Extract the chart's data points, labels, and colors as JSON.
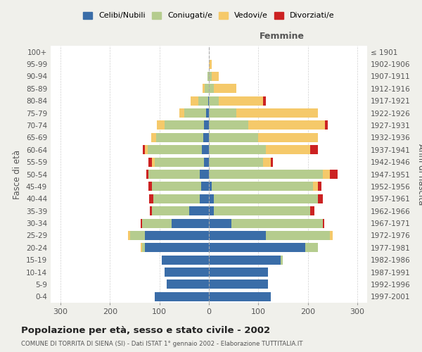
{
  "age_groups": [
    "0-4",
    "5-9",
    "10-14",
    "15-19",
    "20-24",
    "25-29",
    "30-34",
    "35-39",
    "40-44",
    "45-49",
    "50-54",
    "55-59",
    "60-64",
    "65-69",
    "70-74",
    "75-79",
    "80-84",
    "85-89",
    "90-94",
    "95-99",
    "100+"
  ],
  "birth_years": [
    "1997-2001",
    "1992-1996",
    "1987-1991",
    "1982-1986",
    "1977-1981",
    "1972-1976",
    "1967-1971",
    "1962-1966",
    "1957-1961",
    "1952-1956",
    "1947-1951",
    "1942-1946",
    "1937-1941",
    "1932-1936",
    "1927-1931",
    "1922-1926",
    "1917-1921",
    "1912-1916",
    "1907-1911",
    "1902-1906",
    "≤ 1901"
  ],
  "colors": {
    "celibi": "#3a6da8",
    "coniugati": "#b5cc8e",
    "vedovi": "#f5c96a",
    "divorziati": "#cc2222"
  },
  "maschi": {
    "celibi": [
      110,
      85,
      90,
      95,
      130,
      130,
      75,
      40,
      18,
      15,
      18,
      10,
      14,
      12,
      10,
      5,
      2,
      0,
      0,
      0,
      0
    ],
    "coniugati": [
      0,
      0,
      0,
      0,
      5,
      30,
      60,
      75,
      95,
      100,
      105,
      100,
      110,
      95,
      80,
      45,
      20,
      8,
      3,
      0,
      0
    ],
    "vedovi": [
      0,
      0,
      0,
      0,
      3,
      3,
      0,
      0,
      0,
      0,
      0,
      5,
      5,
      10,
      15,
      10,
      15,
      5,
      0,
      0,
      0
    ],
    "divorziati": [
      0,
      0,
      0,
      0,
      0,
      0,
      3,
      5,
      8,
      8,
      3,
      8,
      5,
      0,
      0,
      0,
      0,
      0,
      0,
      0,
      0
    ]
  },
  "femmine": {
    "celibi": [
      125,
      120,
      120,
      145,
      195,
      115,
      45,
      10,
      10,
      5,
      0,
      0,
      0,
      0,
      0,
      0,
      0,
      0,
      0,
      0,
      0
    ],
    "coniugati": [
      0,
      0,
      0,
      5,
      25,
      130,
      185,
      195,
      210,
      205,
      230,
      110,
      115,
      100,
      80,
      55,
      20,
      10,
      5,
      0,
      0
    ],
    "vedovi": [
      0,
      0,
      0,
      0,
      0,
      5,
      0,
      0,
      0,
      10,
      15,
      15,
      90,
      120,
      155,
      165,
      90,
      45,
      15,
      5,
      0
    ],
    "divorziati": [
      0,
      0,
      0,
      0,
      0,
      0,
      3,
      8,
      10,
      8,
      15,
      5,
      15,
      0,
      5,
      0,
      5,
      0,
      0,
      0,
      0
    ]
  },
  "xlim": 320,
  "title": "Popolazione per età, sesso e stato civile - 2002",
  "subtitle": "COMUNE DI TORRITA DI SIENA (SI) - Dati ISTAT 1° gennaio 2002 - Elaborazione TUTTITALIA.IT",
  "ylabel": "Fasce di età",
  "ylabel_right": "Anni di nascita",
  "legend_labels": [
    "Celibi/Nubili",
    "Coniugati/e",
    "Vedovi/e",
    "Divorziati/e"
  ],
  "bg_color": "#f0f0eb",
  "plot_bg_color": "#ffffff",
  "grid_color": "#cccccc",
  "bar_height": 0.75
}
